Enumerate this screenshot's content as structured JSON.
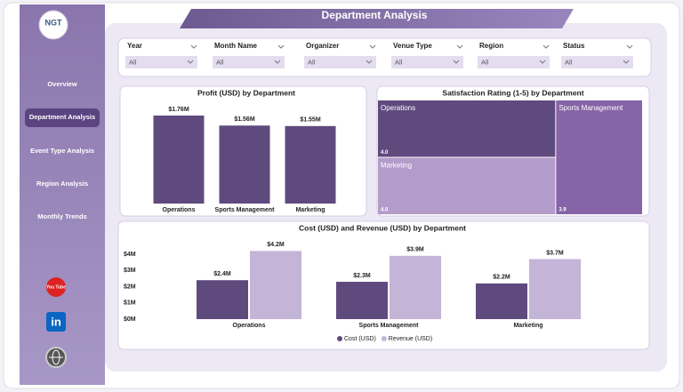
{
  "header": {
    "title": "Department Analysis"
  },
  "sidebar": {
    "logo": "NGT",
    "nav": [
      "Overview",
      "Department Analysis",
      "Event Type Analysis",
      "Region Analysis",
      "Monthly Trends"
    ],
    "social": [
      "You Tube",
      "in"
    ]
  },
  "filters": [
    {
      "label": "Year",
      "value": "All"
    },
    {
      "label": "Month Name",
      "value": "All"
    },
    {
      "label": "Organizer",
      "value": "All"
    },
    {
      "label": "Venue Type",
      "value": "All"
    },
    {
      "label": "Region",
      "value": "All"
    },
    {
      "label": "Status",
      "value": "All"
    }
  ],
  "chart_data": [
    {
      "type": "bar",
      "title": "Profit (USD) by Department",
      "categories": [
        "Operations",
        "Sports Management",
        "Marketing"
      ],
      "values": [
        1.76,
        1.56,
        1.55
      ],
      "value_labels": [
        "$1.76M",
        "$1.56M",
        "$1.55M"
      ],
      "color": "#5f4a7e"
    },
    {
      "type": "treemap",
      "title": "Satisfaction Rating (1-5) by Department",
      "categories": [
        "Operations",
        "Sports Management",
        "Marketing"
      ],
      "values": [
        4.0,
        3.9,
        4.0
      ],
      "value_labels": [
        "4.0",
        "3.9",
        "4.0"
      ],
      "colors": [
        "#5f4a7e",
        "#8763a7",
        "#b39bca"
      ]
    },
    {
      "type": "bar",
      "title": "Cost (USD) and Revenue (USD) by Department",
      "categories": [
        "Operations",
        "Sports Management",
        "Marketing"
      ],
      "series": [
        {
          "name": "Cost (USD)",
          "color": "#5f4a7e",
          "values": [
            2.4,
            2.3,
            2.2
          ],
          "value_labels": [
            "$2.4M",
            "$2.3M",
            "$2.2M"
          ]
        },
        {
          "name": "Revenue (USD)",
          "color": "#c4b4d8",
          "values": [
            4.2,
            3.9,
            3.7
          ],
          "value_labels": [
            "$4.2M",
            "$3.9M",
            "$3.7M"
          ]
        }
      ],
      "ylim": [
        0,
        4
      ],
      "yticks": [
        {
          "value": 0,
          "label": "$0M"
        },
        {
          "value": 1,
          "label": "$1M"
        },
        {
          "value": 2,
          "label": "$2M"
        },
        {
          "value": 3,
          "label": "$3M"
        },
        {
          "value": 4,
          "label": "$4M"
        }
      ]
    }
  ]
}
